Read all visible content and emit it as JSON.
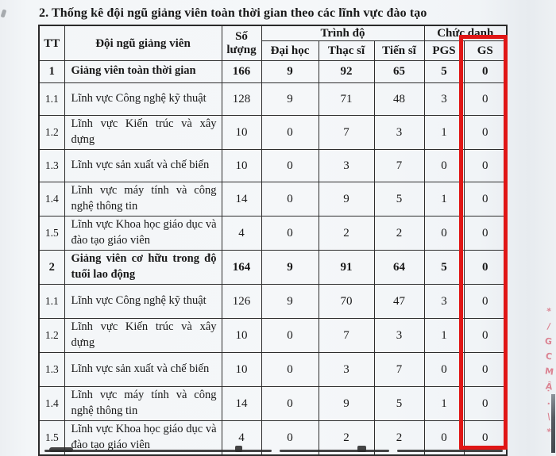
{
  "page": {
    "title": "2. Thống kê đội ngũ giảng viên toàn thời gian theo các lĩnh vực đào tạo"
  },
  "table": {
    "headers": {
      "tt": "TT",
      "staff": "Đội ngũ giảng viên",
      "quantity": "Số lượng",
      "qualification_group": "Trình độ",
      "qualification_cols": [
        "Đại học",
        "Thạc sĩ",
        "Tiến sĩ"
      ],
      "rank_group": "Chức danh",
      "rank_cols": [
        "PGS",
        "GS"
      ]
    },
    "rows": [
      {
        "tt": "1",
        "label": "Giảng viên toàn thời gian",
        "bold": true,
        "values": [
          "166",
          "9",
          "92",
          "65",
          "5",
          "0"
        ]
      },
      {
        "tt": "1.1",
        "label": "Lĩnh vực Công nghệ kỹ thuật",
        "bold": false,
        "values": [
          "128",
          "9",
          "71",
          "48",
          "3",
          "0"
        ]
      },
      {
        "tt": "1.2",
        "label": "Lĩnh vực Kiến trúc và xây dựng",
        "bold": false,
        "values": [
          "10",
          "0",
          "7",
          "3",
          "1",
          "0"
        ]
      },
      {
        "tt": "1.3",
        "label": "Lĩnh vực sản xuất và chế biến",
        "bold": false,
        "values": [
          "10",
          "0",
          "3",
          "7",
          "0",
          "0"
        ]
      },
      {
        "tt": "1.4",
        "label": "Lĩnh vực máy tính và công nghệ thông tin",
        "bold": false,
        "values": [
          "14",
          "0",
          "9",
          "5",
          "1",
          "0"
        ]
      },
      {
        "tt": "1.5",
        "label": "Lĩnh vực Khoa học giáo dục và đào tạo giáo viên",
        "bold": false,
        "values": [
          "4",
          "0",
          "2",
          "2",
          "0",
          "0"
        ]
      },
      {
        "tt": "2",
        "label": "Giảng viên cơ hữu trong độ tuổi lao động",
        "bold": true,
        "values": [
          "164",
          "9",
          "91",
          "64",
          "5",
          "0"
        ]
      },
      {
        "tt": "1.1",
        "label": "Lĩnh vực Công nghệ kỹ thuật",
        "bold": false,
        "values": [
          "126",
          "9",
          "70",
          "47",
          "3",
          "0"
        ]
      },
      {
        "tt": "1.2",
        "label": "Lĩnh vực Kiến trúc và xây dựng",
        "bold": false,
        "values": [
          "10",
          "0",
          "7",
          "3",
          "1",
          "0"
        ]
      },
      {
        "tt": "1.3",
        "label": "Lĩnh vực sản xuất và chế biến",
        "bold": false,
        "values": [
          "10",
          "0",
          "3",
          "7",
          "0",
          "0"
        ]
      },
      {
        "tt": "1.4",
        "label": "Lĩnh vực máy tính và công nghệ thông tin",
        "bold": false,
        "values": [
          "14",
          "0",
          "9",
          "5",
          "1",
          "0"
        ]
      },
      {
        "tt": "1.5",
        "label": "Lĩnh vực Khoa học giáo dục và đào tạo giáo viên",
        "bold": false,
        "values": [
          "4",
          "0",
          "2",
          "2",
          "0",
          "0"
        ]
      }
    ]
  },
  "annotations": {
    "highlighted_column": "GS",
    "highlight_color": "#e01616",
    "margin_note_color": "#d4576b",
    "margin_note_chars": [
      "*",
      "/",
      "G",
      "C",
      "M",
      "Ậ",
      ".",
      "\\",
      "*"
    ]
  }
}
